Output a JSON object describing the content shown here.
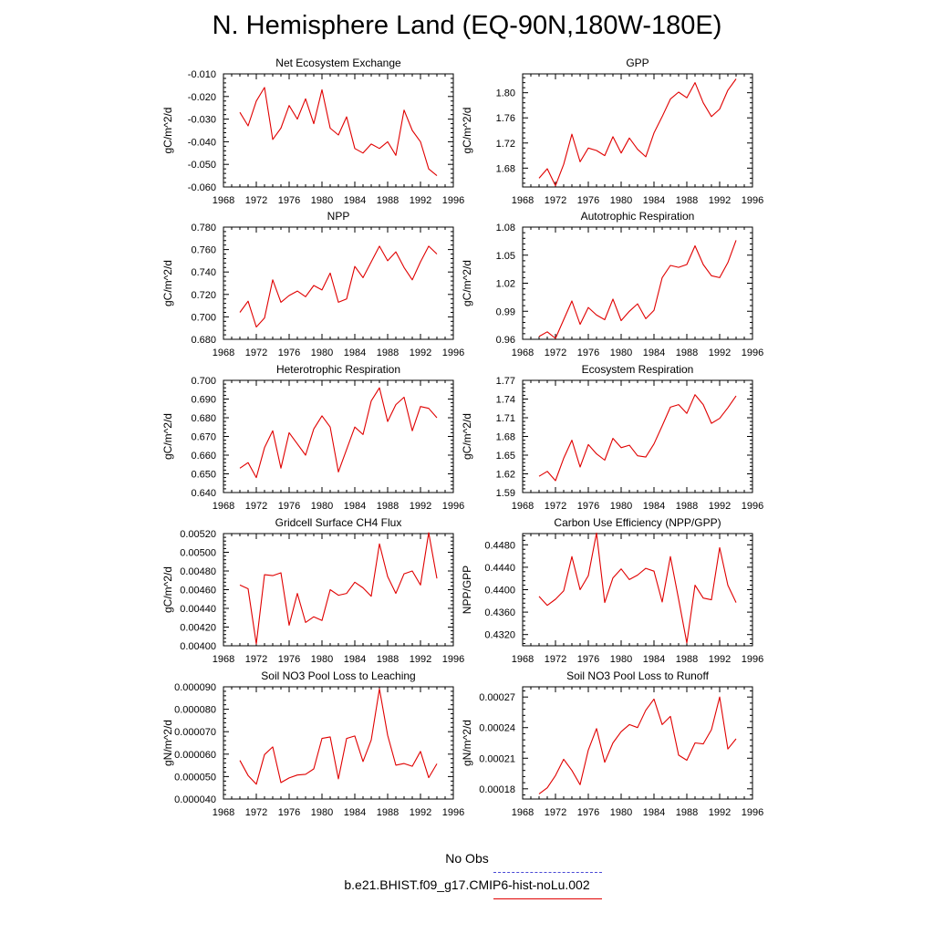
{
  "title": "N. Hemisphere Land (EQ-90N,180W-180E)",
  "legend": {
    "items": [
      {
        "label": "No Obs",
        "color": "#4a4ad6",
        "style": "dashed"
      },
      {
        "label": "b.e21.BHIST.f09_g17.CMIP6-hist-noLu.002",
        "color": "#e00000",
        "style": "solid"
      }
    ]
  },
  "line_color": "#e00000",
  "chart_data": [
    {
      "type": "line",
      "title": "Net Ecosystem Exchange",
      "ylabel": "gC/m^2/d",
      "xlim": [
        1968,
        1996
      ],
      "xticks": [
        1968,
        1972,
        1976,
        1980,
        1984,
        1988,
        1992,
        1996
      ],
      "ylim": [
        -0.06,
        -0.01
      ],
      "yticks": [
        "-0.060",
        "-0.050",
        "-0.040",
        "-0.030",
        "-0.020",
        "-0.010"
      ],
      "x": [
        1970,
        1971,
        1972,
        1973,
        1974,
        1975,
        1976,
        1977,
        1978,
        1979,
        1980,
        1981,
        1982,
        1983,
        1984,
        1985,
        1986,
        1987,
        1988,
        1989,
        1990,
        1991,
        1992,
        1993,
        1994
      ],
      "series": [
        {
          "values": [
            -0.027,
            -0.033,
            -0.022,
            -0.016,
            -0.039,
            -0.034,
            -0.024,
            -0.03,
            -0.021,
            -0.032,
            -0.017,
            -0.034,
            -0.037,
            -0.029,
            -0.043,
            -0.045,
            -0.041,
            -0.043,
            -0.04,
            -0.046,
            -0.026,
            -0.035,
            -0.04,
            -0.052,
            -0.055
          ]
        }
      ]
    },
    {
      "type": "line",
      "title": "GPP",
      "ylabel": "gC/m^2/d",
      "xlim": [
        1968,
        1996
      ],
      "xticks": [
        1968,
        1972,
        1976,
        1980,
        1984,
        1988,
        1992,
        1996
      ],
      "ylim": [
        1.65,
        1.83
      ],
      "yticks": [
        "1.68",
        "1.72",
        "1.76",
        "1.80"
      ],
      "x": [
        1970,
        1971,
        1972,
        1973,
        1974,
        1975,
        1976,
        1977,
        1978,
        1979,
        1980,
        1981,
        1982,
        1983,
        1984,
        1985,
        1986,
        1987,
        1988,
        1989,
        1990,
        1991,
        1992,
        1993,
        1994
      ],
      "series": [
        {
          "values": [
            1.664,
            1.679,
            1.652,
            1.686,
            1.734,
            1.69,
            1.712,
            1.708,
            1.7,
            1.73,
            1.704,
            1.728,
            1.71,
            1.698,
            1.736,
            1.762,
            1.79,
            1.801,
            1.792,
            1.816,
            1.784,
            1.762,
            1.774,
            1.804,
            1.822
          ]
        }
      ]
    },
    {
      "type": "line",
      "title": "NPP",
      "ylabel": "gC/m^2/d",
      "xlim": [
        1968,
        1996
      ],
      "xticks": [
        1968,
        1972,
        1976,
        1980,
        1984,
        1988,
        1992,
        1996
      ],
      "ylim": [
        0.68,
        0.78
      ],
      "yticks": [
        "0.680",
        "0.700",
        "0.720",
        "0.740",
        "0.760",
        "0.780"
      ],
      "x": [
        1970,
        1971,
        1972,
        1973,
        1974,
        1975,
        1976,
        1977,
        1978,
        1979,
        1980,
        1981,
        1982,
        1983,
        1984,
        1985,
        1986,
        1987,
        1988,
        1989,
        1990,
        1991,
        1992,
        1993,
        1994
      ],
      "series": [
        {
          "values": [
            0.704,
            0.714,
            0.691,
            0.699,
            0.733,
            0.713,
            0.719,
            0.723,
            0.718,
            0.728,
            0.724,
            0.739,
            0.713,
            0.716,
            0.745,
            0.735,
            0.749,
            0.763,
            0.75,
            0.758,
            0.744,
            0.733,
            0.749,
            0.763,
            0.756
          ]
        }
      ]
    },
    {
      "type": "line",
      "title": "Autotrophic Respiration",
      "ylabel": "gC/m^2/d",
      "xlim": [
        1968,
        1996
      ],
      "xticks": [
        1968,
        1972,
        1976,
        1980,
        1984,
        1988,
        1992,
        1996
      ],
      "ylim": [
        0.96,
        1.08
      ],
      "yticks": [
        "0.96",
        "0.99",
        "1.02",
        "1.05",
        "1.08"
      ],
      "x": [
        1970,
        1971,
        1972,
        1973,
        1974,
        1975,
        1976,
        1977,
        1978,
        1979,
        1980,
        1981,
        1982,
        1983,
        1984,
        1985,
        1986,
        1987,
        1988,
        1989,
        1990,
        1991,
        1992,
        1993,
        1994
      ],
      "series": [
        {
          "values": [
            0.963,
            0.968,
            0.961,
            0.981,
            1.001,
            0.976,
            0.994,
            0.986,
            0.981,
            1.003,
            0.98,
            0.99,
            0.998,
            0.982,
            0.991,
            1.026,
            1.039,
            1.037,
            1.04,
            1.06,
            1.04,
            1.028,
            1.026,
            1.042,
            1.066
          ]
        }
      ]
    },
    {
      "type": "line",
      "title": "Heterotrophic Respiration",
      "ylabel": "gC/m^2/d",
      "xlim": [
        1968,
        1996
      ],
      "xticks": [
        1968,
        1972,
        1976,
        1980,
        1984,
        1988,
        1992,
        1996
      ],
      "ylim": [
        0.64,
        0.7
      ],
      "yticks": [
        "0.640",
        "0.650",
        "0.660",
        "0.670",
        "0.680",
        "0.690",
        "0.700"
      ],
      "x": [
        1970,
        1971,
        1972,
        1973,
        1974,
        1975,
        1976,
        1977,
        1978,
        1979,
        1980,
        1981,
        1982,
        1983,
        1984,
        1985,
        1986,
        1987,
        1988,
        1989,
        1990,
        1991,
        1992,
        1993,
        1994
      ],
      "series": [
        {
          "values": [
            0.653,
            0.656,
            0.648,
            0.664,
            0.673,
            0.653,
            0.672,
            0.666,
            0.66,
            0.674,
            0.681,
            0.675,
            0.651,
            0.663,
            0.675,
            0.671,
            0.689,
            0.696,
            0.678,
            0.687,
            0.691,
            0.673,
            0.686,
            0.685,
            0.68
          ]
        }
      ]
    },
    {
      "type": "line",
      "title": "Ecosystem Respiration",
      "ylabel": "gC/m^2/d",
      "xlim": [
        1968,
        1996
      ],
      "xticks": [
        1968,
        1972,
        1976,
        1980,
        1984,
        1988,
        1992,
        1996
      ],
      "ylim": [
        1.59,
        1.77
      ],
      "yticks": [
        "1.59",
        "1.62",
        "1.65",
        "1.68",
        "1.71",
        "1.74",
        "1.77"
      ],
      "x": [
        1970,
        1971,
        1972,
        1973,
        1974,
        1975,
        1976,
        1977,
        1978,
        1979,
        1980,
        1981,
        1982,
        1983,
        1984,
        1985,
        1986,
        1987,
        1988,
        1989,
        1990,
        1991,
        1992,
        1993,
        1994
      ],
      "series": [
        {
          "values": [
            1.616,
            1.624,
            1.609,
            1.645,
            1.674,
            1.631,
            1.667,
            1.652,
            1.642,
            1.677,
            1.662,
            1.666,
            1.649,
            1.647,
            1.668,
            1.697,
            1.727,
            1.731,
            1.717,
            1.747,
            1.731,
            1.701,
            1.709,
            1.726,
            1.745
          ]
        }
      ]
    },
    {
      "type": "line",
      "title": "Gridcell Surface CH4 Flux",
      "ylabel": "gC/m^2/d",
      "xlim": [
        1968,
        1996
      ],
      "xticks": [
        1968,
        1972,
        1976,
        1980,
        1984,
        1988,
        1992,
        1996
      ],
      "ylim": [
        0.004,
        0.0052
      ],
      "yticks": [
        "0.00400",
        "0.00420",
        "0.00440",
        "0.00460",
        "0.00480",
        "0.00500",
        "0.00520"
      ],
      "x": [
        1970,
        1971,
        1972,
        1973,
        1974,
        1975,
        1976,
        1977,
        1978,
        1979,
        1980,
        1981,
        1982,
        1983,
        1984,
        1985,
        1986,
        1987,
        1988,
        1989,
        1990,
        1991,
        1992,
        1993,
        1994
      ],
      "series": [
        {
          "values": [
            0.00465,
            0.00461,
            0.00402,
            0.00476,
            0.00475,
            0.00478,
            0.00422,
            0.00456,
            0.00425,
            0.00431,
            0.00427,
            0.0046,
            0.00454,
            0.00456,
            0.00468,
            0.00462,
            0.00453,
            0.00509,
            0.00474,
            0.00456,
            0.00477,
            0.0048,
            0.00465,
            0.00521,
            0.00472
          ]
        }
      ]
    },
    {
      "type": "line",
      "title": "Carbon Use Efficiency (NPP/GPP)",
      "ylabel": "NPP/GPP",
      "xlim": [
        1968,
        1996
      ],
      "xticks": [
        1968,
        1972,
        1976,
        1980,
        1984,
        1988,
        1992,
        1996
      ],
      "ylim": [
        0.43,
        0.45
      ],
      "yticks": [
        "0.4320",
        "0.4360",
        "0.4400",
        "0.4440",
        "0.4480"
      ],
      "x": [
        1970,
        1971,
        1972,
        1973,
        1974,
        1975,
        1976,
        1977,
        1978,
        1979,
        1980,
        1981,
        1982,
        1983,
        1984,
        1985,
        1986,
        1987,
        1988,
        1989,
        1990,
        1991,
        1992,
        1993,
        1994
      ],
      "series": [
        {
          "values": [
            0.4388,
            0.4372,
            0.4383,
            0.4398,
            0.4459,
            0.44,
            0.4425,
            0.4501,
            0.4377,
            0.4421,
            0.4437,
            0.4418,
            0.4426,
            0.4438,
            0.4433,
            0.4378,
            0.4459,
            0.4383,
            0.4305,
            0.4408,
            0.4385,
            0.4382,
            0.4475,
            0.4408,
            0.4377
          ]
        }
      ]
    },
    {
      "type": "line",
      "title": "Soil NO3 Pool Loss to Leaching",
      "ylabel": "gN/m^2/d",
      "xlim": [
        1968,
        1996
      ],
      "xticks": [
        1968,
        1972,
        1976,
        1980,
        1984,
        1988,
        1992,
        1996
      ],
      "ylim": [
        4e-05,
        9e-05
      ],
      "yticks": [
        "0.000040",
        "0.000050",
        "0.000060",
        "0.000070",
        "0.000080",
        "0.000090"
      ],
      "x": [
        1970,
        1971,
        1972,
        1973,
        1974,
        1975,
        1976,
        1977,
        1978,
        1979,
        1980,
        1981,
        1982,
        1983,
        1984,
        1985,
        1986,
        1987,
        1988,
        1989,
        1990,
        1991,
        1992,
        1993,
        1994
      ],
      "series": [
        {
          "values": [
            5.72e-05,
            5.05e-05,
            4.66e-05,
            5.98e-05,
            6.32e-05,
            4.73e-05,
            4.94e-05,
            5.07e-05,
            5.1e-05,
            5.34e-05,
            6.7e-05,
            6.77e-05,
            4.9e-05,
            6.7e-05,
            6.81e-05,
            5.67e-05,
            6.63e-05,
            8.91e-05,
            6.84e-05,
            5.51e-05,
            5.58e-05,
            5.46e-05,
            6.12e-05,
            4.95e-05,
            5.57e-05
          ]
        }
      ]
    },
    {
      "type": "line",
      "title": "Soil NO3 Pool Loss to Runoff",
      "ylabel": "gN/m^2/d",
      "xlim": [
        1968,
        1996
      ],
      "xticks": [
        1968,
        1972,
        1976,
        1980,
        1984,
        1988,
        1992,
        1996
      ],
      "ylim": [
        0.00017,
        0.00028
      ],
      "yticks": [
        "0.00018",
        "0.00021",
        "0.00024",
        "0.00027"
      ],
      "x": [
        1970,
        1971,
        1972,
        1973,
        1974,
        1975,
        1976,
        1977,
        1978,
        1979,
        1980,
        1981,
        1982,
        1983,
        1984,
        1985,
        1986,
        1987,
        1988,
        1989,
        1990,
        1991,
        1992,
        1993,
        1994
      ],
      "series": [
        {
          "values": [
            0.000175,
            0.000181,
            0.000193,
            0.000209,
            0.000198,
            0.000184,
            0.000218,
            0.000239,
            0.000206,
            0.000225,
            0.000236,
            0.000243,
            0.00024,
            0.000257,
            0.000268,
            0.000243,
            0.000251,
            0.000213,
            0.000208,
            0.000225,
            0.000224,
            0.000238,
            0.00027,
            0.000219,
            0.000229
          ]
        }
      ]
    }
  ]
}
